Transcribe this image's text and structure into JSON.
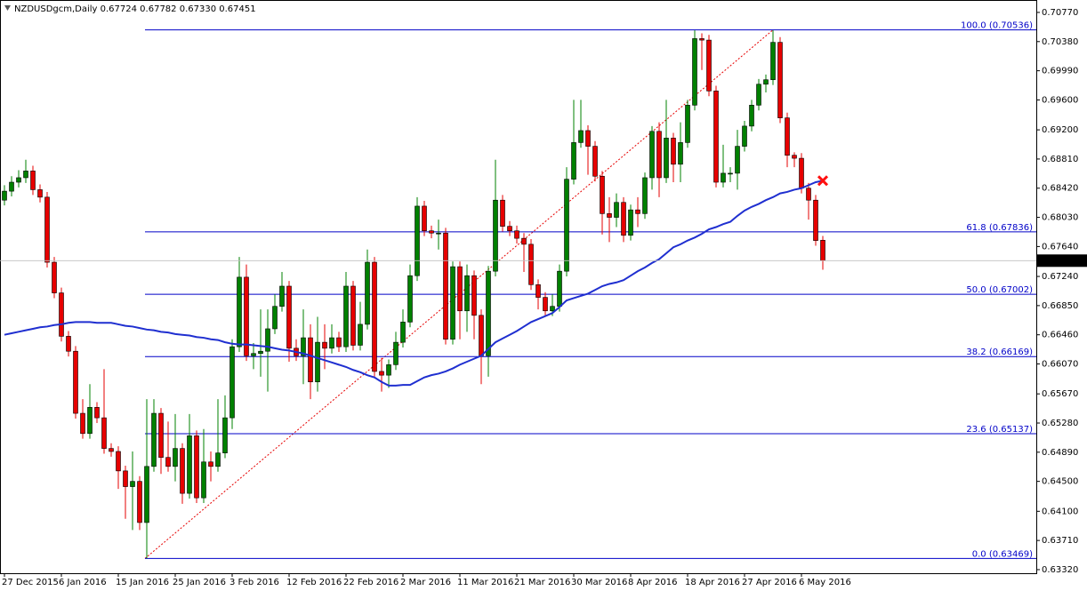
{
  "chart_data": {
    "type": "candlestick",
    "title": "NZDUSDgcm,Daily  0.67724 0.67782 0.67330 0.67451",
    "categories": [
      "27 Dec 2015",
      null,
      null,
      null,
      null,
      null,
      null,
      null,
      "6 Jan 2016",
      null,
      null,
      null,
      null,
      null,
      null,
      null,
      "15 Jan 2016",
      null,
      null,
      null,
      null,
      null,
      null,
      null,
      "25 Jan 2016",
      null,
      null,
      null,
      null,
      null,
      null,
      null,
      "3 Feb 2016",
      null,
      null,
      null,
      null,
      null,
      null,
      null,
      "12 Feb 2016",
      null,
      null,
      null,
      null,
      null,
      null,
      null,
      "22 Feb 2016",
      null,
      null,
      null,
      null,
      null,
      null,
      null,
      "2 Mar 2016",
      null,
      null,
      null,
      null,
      null,
      null,
      null,
      "11 Mar 2016",
      null,
      null,
      null,
      null,
      null,
      null,
      null,
      "21 Mar 2016",
      null,
      null,
      null,
      null,
      null,
      null,
      null,
      "30 Mar 2016",
      null,
      null,
      null,
      null,
      null,
      null,
      null,
      "8 Apr 2016",
      null,
      null,
      null,
      null,
      null,
      null,
      null,
      "18 Apr 2016",
      null,
      null,
      null,
      null,
      null,
      null,
      null,
      "27 Apr 2016",
      null,
      null,
      null,
      null,
      null,
      null,
      null,
      "6 May 2016",
      null,
      null,
      null
    ],
    "open": [
      0.6826,
      0.6838,
      0.685,
      0.6856,
      0.6865,
      0.684,
      0.683,
      0.6743,
      0.6702,
      0.6644,
      0.6624,
      0.6541,
      0.6514,
      0.6549,
      0.6535,
      0.6494,
      0.649,
      0.6464,
      0.6443,
      0.645,
      0.6395,
      0.647,
      0.6541,
      0.6482,
      0.647,
      0.6494,
      0.6434,
      0.6511,
      0.6428,
      0.6476,
      0.647,
      0.6488,
      0.6535,
      0.663,
      0.6723,
      0.6618,
      0.6621,
      0.6624,
      0.6654,
      0.6684,
      0.6711,
      0.6628,
      0.6618,
      0.6642,
      0.6583,
      0.6636,
      0.6628,
      0.6642,
      0.663,
      0.6711,
      0.6632,
      0.666,
      0.6743,
      0.6597,
      0.6592,
      0.6606,
      0.6636,
      0.6663,
      0.6725,
      0.6818,
      0.6785,
      0.6782,
      0.6782,
      0.664,
      0.6737,
      0.6678,
      0.6725,
      0.6672,
      0.6618,
      0.6731,
      0.6826,
      0.6791,
      0.6785,
      0.6775,
      0.6767,
      0.6713,
      0.6696,
      0.6678,
      0.6684,
      0.6731,
      0.6854,
      0.6903,
      0.6919,
      0.6898,
      0.6858,
      0.6808,
      0.6803,
      0.6823,
      0.6779,
      0.6813,
      0.6808,
      0.6856,
      0.6918,
      0.6856,
      0.6909,
      0.6874,
      0.6903,
      0.6953,
      0.7042,
      0.704,
      0.6972,
      0.685,
      0.6862,
      0.6862,
      0.6898,
      0.6925,
      0.6953,
      0.6981,
      0.6987,
      0.7037,
      0.6936,
      0.6886,
      0.6882,
      0.6842,
      0.6826,
      0.67724
    ],
    "high": [
      0.6846,
      0.6858,
      0.6866,
      0.688,
      0.6872,
      0.6847,
      0.6837,
      0.675,
      0.6709,
      0.6651,
      0.6631,
      0.656,
      0.658,
      0.6556,
      0.66,
      0.6501,
      0.6497,
      0.6471,
      0.649,
      0.6457,
      0.656,
      0.656,
      0.6548,
      0.653,
      0.654,
      0.6501,
      0.654,
      0.6518,
      0.652,
      0.649,
      0.656,
      0.6565,
      0.664,
      0.675,
      0.674,
      0.6635,
      0.668,
      0.668,
      0.67,
      0.673,
      0.6718,
      0.664,
      0.668,
      0.666,
      0.667,
      0.666,
      0.666,
      0.665,
      0.673,
      0.6718,
      0.669,
      0.676,
      0.675,
      0.6615,
      0.6613,
      0.665,
      0.668,
      0.674,
      0.683,
      0.6825,
      0.6792,
      0.68,
      0.6789,
      0.6744,
      0.6744,
      0.674,
      0.6732,
      0.668,
      0.6738,
      0.688,
      0.6833,
      0.6798,
      0.6792,
      0.6782,
      0.6774,
      0.672,
      0.6703,
      0.67,
      0.674,
      0.687,
      0.696,
      0.696,
      0.6926,
      0.6905,
      0.6865,
      0.683,
      0.6835,
      0.683,
      0.682,
      0.683,
      0.6863,
      0.6925,
      0.693,
      0.696,
      0.6916,
      0.693,
      0.696,
      0.7053,
      0.7049,
      0.7047,
      0.6979,
      0.69,
      0.687,
      0.692,
      0.6932,
      0.696,
      0.6988,
      0.6994,
      0.7053,
      0.7044,
      0.6943,
      0.689,
      0.6889,
      0.6849,
      0.6833,
      0.67782
    ],
    "low": [
      0.6819,
      0.6831,
      0.6843,
      0.6849,
      0.6833,
      0.6823,
      0.6736,
      0.6695,
      0.6637,
      0.6617,
      0.6534,
      0.6507,
      0.6507,
      0.6528,
      0.6487,
      0.6483,
      0.644,
      0.64,
      0.6385,
      0.6385,
      0.6347,
      0.6463,
      0.646,
      0.6463,
      0.645,
      0.642,
      0.6427,
      0.6421,
      0.6421,
      0.645,
      0.6463,
      0.6481,
      0.652,
      0.6623,
      0.6611,
      0.66,
      0.659,
      0.657,
      0.6647,
      0.6677,
      0.661,
      0.6611,
      0.658,
      0.656,
      0.657,
      0.66,
      0.6621,
      0.6623,
      0.6623,
      0.6625,
      0.6625,
      0.6653,
      0.659,
      0.657,
      0.6575,
      0.6599,
      0.6629,
      0.6656,
      0.6718,
      0.6778,
      0.6775,
      0.676,
      0.6633,
      0.6633,
      0.664,
      0.665,
      0.664,
      0.658,
      0.659,
      0.6724,
      0.6784,
      0.6778,
      0.6768,
      0.673,
      0.6706,
      0.668,
      0.6671,
      0.6671,
      0.6677,
      0.6724,
      0.6847,
      0.6896,
      0.686,
      0.6851,
      0.678,
      0.677,
      0.679,
      0.677,
      0.6772,
      0.679,
      0.6801,
      0.684,
      0.683,
      0.6849,
      0.685,
      0.685,
      0.6896,
      0.6946,
      0.7,
      0.6965,
      0.6843,
      0.6843,
      0.685,
      0.684,
      0.6891,
      0.6918,
      0.6946,
      0.697,
      0.698,
      0.6929,
      0.687,
      0.687,
      0.6835,
      0.68,
      0.6765,
      0.6733
    ],
    "close": [
      0.6838,
      0.685,
      0.6856,
      0.6865,
      0.684,
      0.683,
      0.6743,
      0.6702,
      0.6644,
      0.6624,
      0.6541,
      0.6514,
      0.6549,
      0.6535,
      0.6494,
      0.649,
      0.6464,
      0.6443,
      0.645,
      0.6395,
      0.647,
      0.6541,
      0.6482,
      0.647,
      0.6494,
      0.6434,
      0.6511,
      0.6428,
      0.6476,
      0.647,
      0.6488,
      0.6535,
      0.663,
      0.6723,
      0.6618,
      0.6621,
      0.6624,
      0.6654,
      0.6684,
      0.6711,
      0.6628,
      0.6618,
      0.6642,
      0.6583,
      0.6636,
      0.6628,
      0.6642,
      0.663,
      0.6711,
      0.6632,
      0.666,
      0.6743,
      0.6597,
      0.6592,
      0.6606,
      0.6636,
      0.6663,
      0.6725,
      0.6818,
      0.6785,
      0.6782,
      0.6782,
      0.664,
      0.6737,
      0.6678,
      0.6725,
      0.6672,
      0.6618,
      0.6731,
      0.6826,
      0.6791,
      0.6785,
      0.6775,
      0.6767,
      0.6713,
      0.6696,
      0.6678,
      0.6684,
      0.6731,
      0.6854,
      0.6903,
      0.6919,
      0.6898,
      0.6858,
      0.6808,
      0.6803,
      0.6823,
      0.6779,
      0.6813,
      0.6808,
      0.6856,
      0.6918,
      0.6856,
      0.6909,
      0.6874,
      0.6903,
      0.6953,
      0.7042,
      0.704,
      0.6972,
      0.685,
      0.6862,
      0.6862,
      0.6898,
      0.6925,
      0.6953,
      0.6981,
      0.6987,
      0.7037,
      0.6936,
      0.6886,
      0.6882,
      0.6842,
      0.6826,
      0.6772,
      0.67451
    ],
    "up_color": "#008000",
    "down_color": "#e60000",
    "moving_average": {
      "color": "#1f2fd0",
      "values": [
        0.6646,
        0.6648,
        0.665,
        0.6652,
        0.6654,
        0.6656,
        0.6657,
        0.6659,
        0.666,
        0.6662,
        0.6663,
        0.6663,
        0.6663,
        0.6662,
        0.6662,
        0.6662,
        0.666,
        0.6658,
        0.6657,
        0.6655,
        0.6653,
        0.6652,
        0.665,
        0.6649,
        0.6647,
        0.6646,
        0.6645,
        0.6643,
        0.6642,
        0.664,
        0.6639,
        0.6636,
        0.6634,
        0.6633,
        0.6633,
        0.6632,
        0.6631,
        0.663,
        0.6628,
        0.6626,
        0.6625,
        0.6623,
        0.6621,
        0.6618,
        0.6615,
        0.6612,
        0.6609,
        0.6606,
        0.6603,
        0.6599,
        0.6596,
        0.6592,
        0.6589,
        0.6583,
        0.6578,
        0.6578,
        0.6579,
        0.6579,
        0.6584,
        0.6589,
        0.6592,
        0.6594,
        0.6597,
        0.6601,
        0.6606,
        0.661,
        0.6614,
        0.6618,
        0.6627,
        0.6636,
        0.6641,
        0.6646,
        0.6651,
        0.6657,
        0.6663,
        0.6667,
        0.6671,
        0.6675,
        0.6683,
        0.6692,
        0.6695,
        0.6698,
        0.6701,
        0.6706,
        0.6711,
        0.6714,
        0.6716,
        0.6719,
        0.6725,
        0.6731,
        0.6736,
        0.6742,
        0.6747,
        0.6755,
        0.6763,
        0.6767,
        0.6772,
        0.6776,
        0.6781,
        0.6787,
        0.679,
        0.6794,
        0.6797,
        0.6805,
        0.6812,
        0.6817,
        0.6821,
        0.6826,
        0.683,
        0.6835,
        0.6837,
        0.684,
        0.6842,
        0.6846,
        0.685,
        0.6852
      ]
    },
    "fibonacci": {
      "color": "#0000c8",
      "trend_color": "#e60000",
      "levels": [
        {
          "value": 0.70536,
          "label": "100.0 (0.70536)"
        },
        {
          "value": 0.67836,
          "label": "61.8 (0.67836)"
        },
        {
          "value": 0.67002,
          "label": "50.0 (0.67002)"
        },
        {
          "value": 0.66169,
          "label": "38.2 (0.66169)"
        },
        {
          "value": 0.65137,
          "label": "23.6 (0.65137)"
        },
        {
          "value": 0.63469,
          "label": "0.0 (0.63469)"
        }
      ]
    },
    "ylim": [
      0.63272,
      0.70936
    ],
    "yticks": [
      {
        "value": 0.7077,
        "label": "0.70770"
      },
      {
        "value": 0.7038,
        "label": "0.70380"
      },
      {
        "value": 0.6999,
        "label": "0.69990"
      },
      {
        "value": 0.696,
        "label": "0.69600"
      },
      {
        "value": 0.692,
        "label": "0.69200"
      },
      {
        "value": 0.6881,
        "label": "0.68810"
      },
      {
        "value": 0.6842,
        "label": "0.68420"
      },
      {
        "value": 0.6803,
        "label": "0.68030"
      },
      {
        "value": 0.6764,
        "label": "0.67640"
      },
      {
        "value": 0.6724,
        "label": "0.67240"
      },
      {
        "value": 0.6685,
        "label": "0.66850"
      },
      {
        "value": 0.6646,
        "label": "0.66460"
      },
      {
        "value": 0.6607,
        "label": "0.66070"
      },
      {
        "value": 0.6567,
        "label": "0.65670"
      },
      {
        "value": 0.6528,
        "label": "0.65280"
      },
      {
        "value": 0.6489,
        "label": "0.64890"
      },
      {
        "value": 0.645,
        "label": "0.64500"
      },
      {
        "value": 0.641,
        "label": "0.64100"
      },
      {
        "value": 0.6371,
        "label": "0.63710"
      },
      {
        "value": 0.6332,
        "label": "0.63320"
      }
    ]
  }
}
